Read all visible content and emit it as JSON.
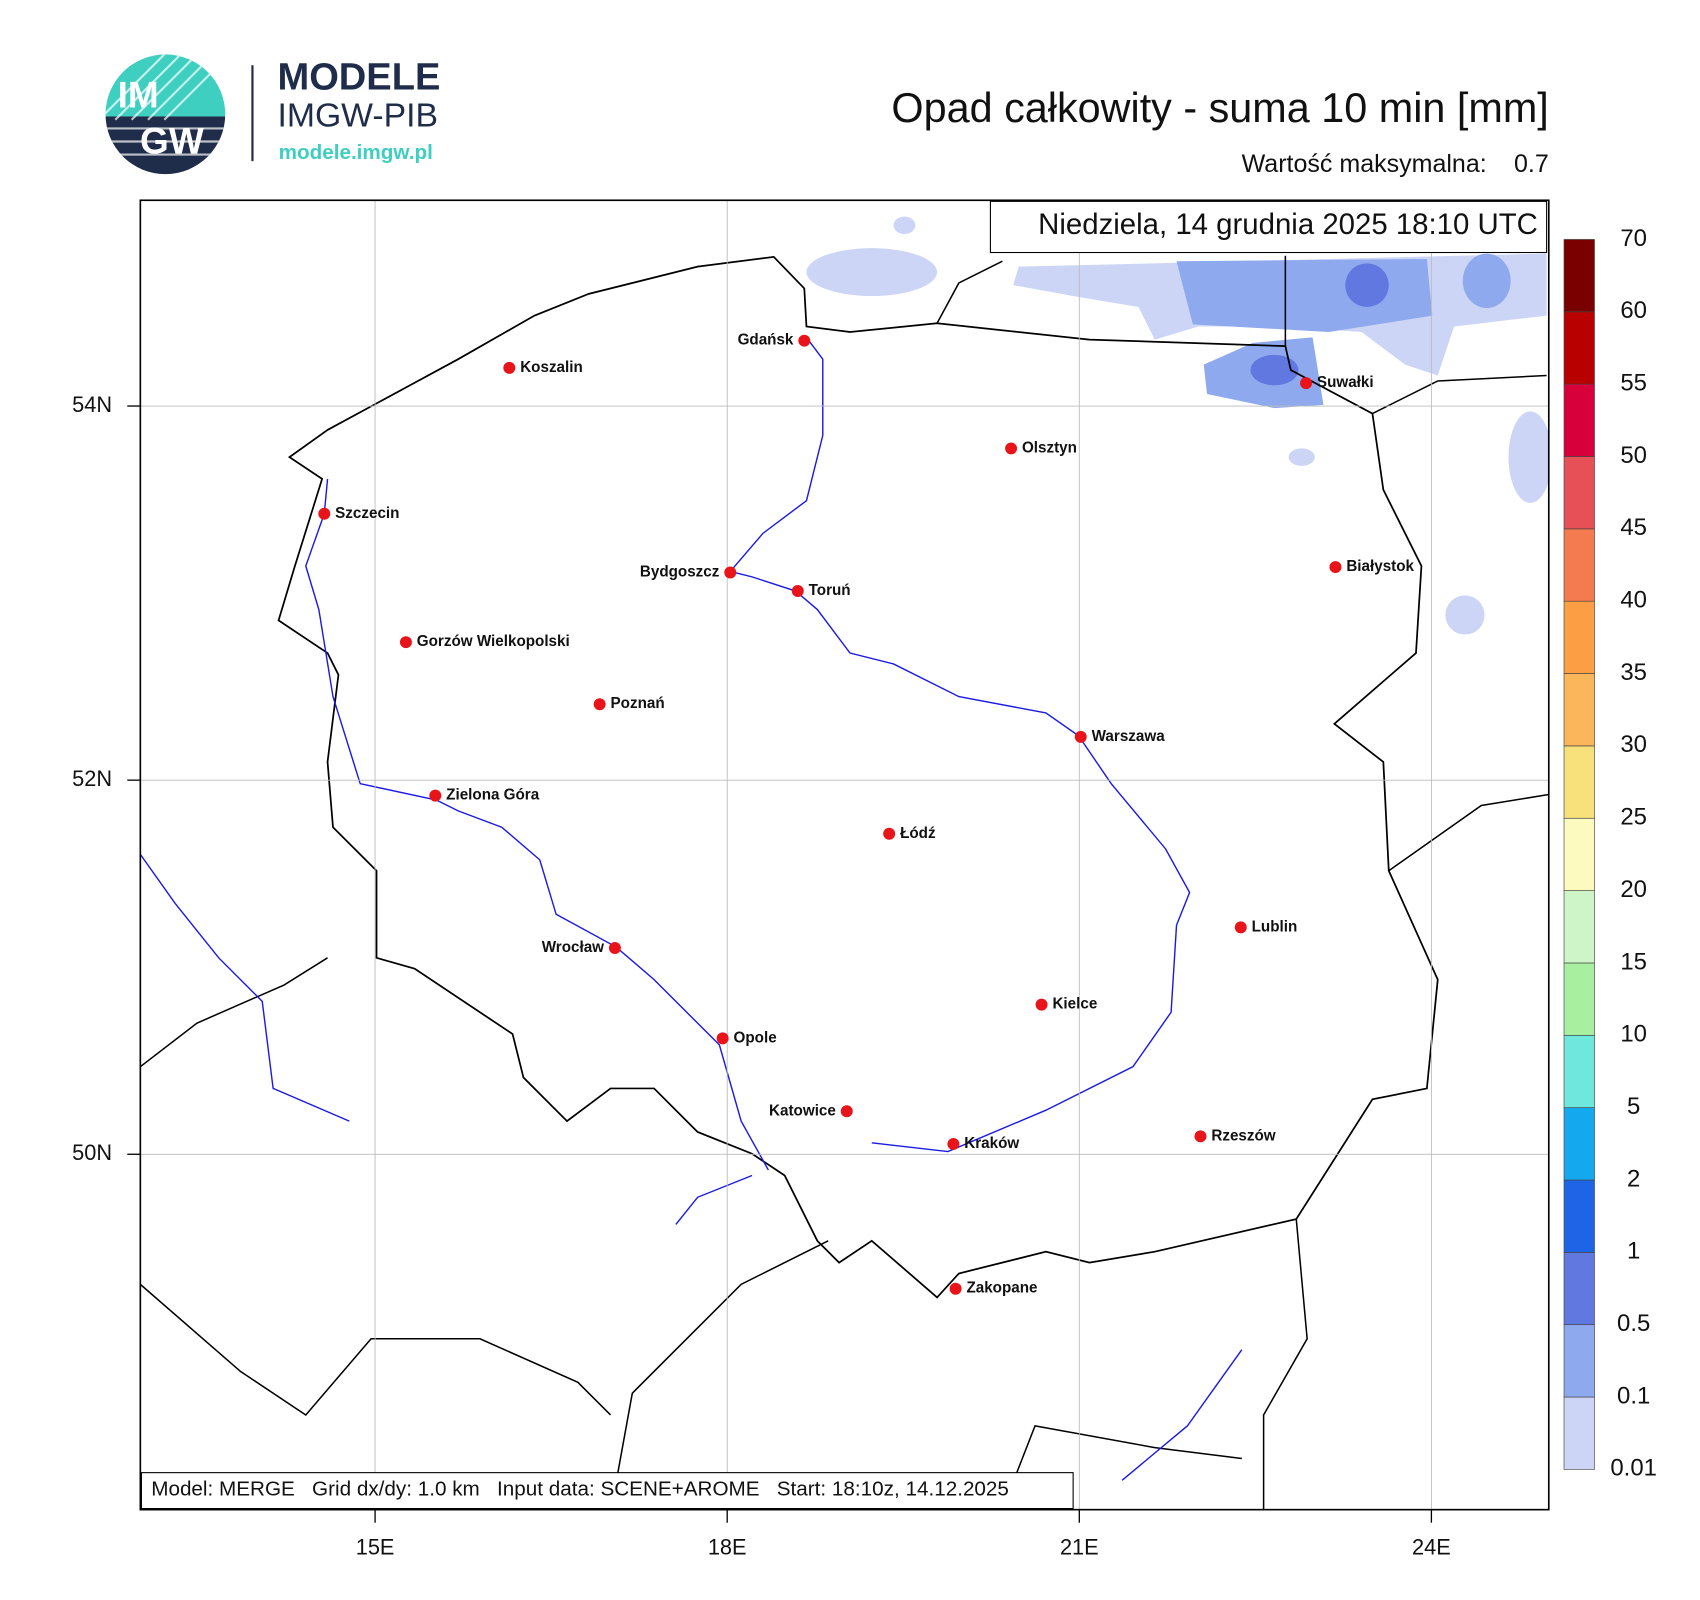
{
  "logo": {
    "badge_top": "IM",
    "badge_bottom": "GW",
    "name": "MODELE",
    "org": "IMGW-PIB",
    "url": "modele.imgw.pl"
  },
  "title": "Opad całkowity - suma 10 min [mm]",
  "max_label": "Wartość maksymalna:",
  "max_value": 0.7,
  "valid_time": "Niedziela, 14 grudnia 2025 18:10 UTC",
  "map": {
    "xlim": [
      13,
      25
    ],
    "ylim": [
      48.1,
      55.1
    ],
    "xticks": [
      {
        "value": 15,
        "label": "15E"
      },
      {
        "value": 18,
        "label": "18E"
      },
      {
        "value": 21,
        "label": "21E"
      },
      {
        "value": 24,
        "label": "24E"
      }
    ],
    "yticks": [
      {
        "value": 54,
        "label": "54N"
      },
      {
        "value": 52,
        "label": "52N"
      },
      {
        "value": 50,
        "label": "50N"
      }
    ],
    "grid": true
  },
  "cities": [
    "Gdańsk",
    "Koszalin",
    "Szczecin",
    "Olsztyn",
    "Suwałki",
    "Bydgoszcz",
    "Toruń",
    "Białystok",
    "Gorzów Wielkopolski",
    "Poznań",
    "Warszawa",
    "Zielona Góra",
    "Łódź",
    "Lublin",
    "Wrocław",
    "Kielce",
    "Opole",
    "Katowice",
    "Kraków",
    "Rzeszów",
    "Zakopane"
  ],
  "colorbar": {
    "levels": [
      0.01,
      0.1,
      0.5,
      1,
      2,
      5,
      10,
      15,
      20,
      25,
      30,
      35,
      40,
      45,
      50,
      55,
      60,
      70
    ],
    "colors": [
      "#ccd5f5",
      "#8ea9ee",
      "#6078e0",
      "#1e64e6",
      "#14a8ef",
      "#6ee8dc",
      "#a8f0a0",
      "#cdf5c8",
      "#fdfac0",
      "#f8e07a",
      "#fbb55a",
      "#fb9e44",
      "#f47a50",
      "#e85058",
      "#d8003a",
      "#b80000",
      "#7a0000"
    ]
  },
  "footer": "Model: MERGE   Grid dx/dy: 1.0 km   Input data: SCENE+AROME   Start: 18:10z, 14.12.2025"
}
